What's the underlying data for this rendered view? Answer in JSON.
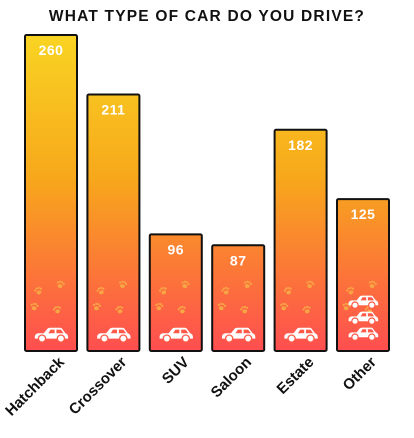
{
  "chart_data": {
    "type": "bar",
    "title": "WHAT TYPE OF CAR DO YOU DRIVE?",
    "categories": [
      "Hatchback",
      "Crossover",
      "SUV",
      "Saloon",
      "Estate",
      "Other"
    ],
    "values": [
      260,
      211,
      96,
      87,
      182,
      125
    ],
    "data_labels": [
      "260",
      "211",
      "96",
      "87",
      "182",
      "125"
    ],
    "xlabel": "",
    "ylabel": "",
    "ylim": [
      0,
      260
    ],
    "grid": false,
    "legend": "none",
    "icons": [
      "car-icon",
      "paw-print-icon"
    ],
    "colors": {
      "bar_top": "#f9d423",
      "bar_bottom": "#ff4e50",
      "bar_border": "#111111",
      "label_text": "#ffffff",
      "axis_text": "#111111"
    }
  }
}
